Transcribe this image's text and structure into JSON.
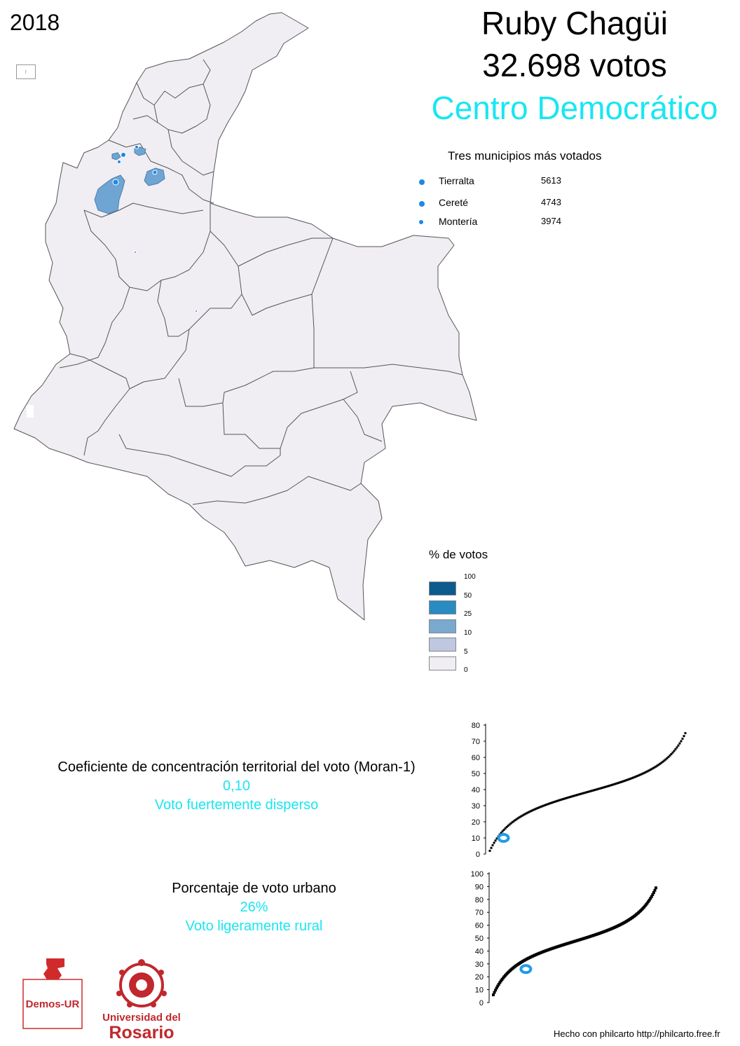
{
  "header": {
    "year": "2018",
    "candidate": "Ruby Chagüi",
    "votes": "32.698 votos",
    "party": "Centro Democrático",
    "party_color": "#19e6f2"
  },
  "top_municipalities": {
    "title": "Tres municipios más votados",
    "items": [
      {
        "name": "Tierralta",
        "votes": "5613"
      },
      {
        "name": "Cereté",
        "votes": "4743"
      },
      {
        "name": "Montería",
        "votes": "3974"
      }
    ],
    "dot_color": "#1e88e5"
  },
  "legend": {
    "title": "% de votos",
    "labels": [
      "100",
      "50",
      "25",
      "10",
      "5",
      "0"
    ],
    "colors": [
      "#0c5a8e",
      "#2a8ac2",
      "#7aa9d0",
      "#bfc8e0",
      "#f0eef3"
    ]
  },
  "map": {
    "base_color": "#f0eef3",
    "border_color": "#555555",
    "highlight_color": "#6fa5d3"
  },
  "moran": {
    "label": "Coeficiente de concentración territorial del voto (Moran-1)",
    "value": "0,10",
    "description": "Voto fuertemente disperso"
  },
  "urban": {
    "label": "Porcentaje de voto urbano",
    "value": "26%",
    "description": "Voto ligeramente rural"
  },
  "chart_data": [
    {
      "type": "scatter",
      "title": "",
      "ylim": [
        0,
        80
      ],
      "yticks": [
        "0",
        "10",
        "20",
        "30",
        "40",
        "50",
        "60",
        "70",
        "80"
      ],
      "highlight": {
        "y": 10,
        "rank_fraction": 0.07
      },
      "highlight_color": "#1e9be8"
    },
    {
      "type": "scatter",
      "title": "",
      "ylim": [
        0,
        100
      ],
      "yticks": [
        "0",
        "10",
        "20",
        "30",
        "40",
        "50",
        "60",
        "70",
        "80",
        "90",
        "100"
      ],
      "highlight": {
        "y": 26,
        "rank_fraction": 0.2
      },
      "highlight_color": "#1e9be8"
    }
  ],
  "footer": {
    "credit": "Hecho con philcarto http://philcarto.free.fr",
    "demos_logo": "Demos-UR",
    "university_line1": "Universidad del",
    "university_line2": "Rosario"
  }
}
